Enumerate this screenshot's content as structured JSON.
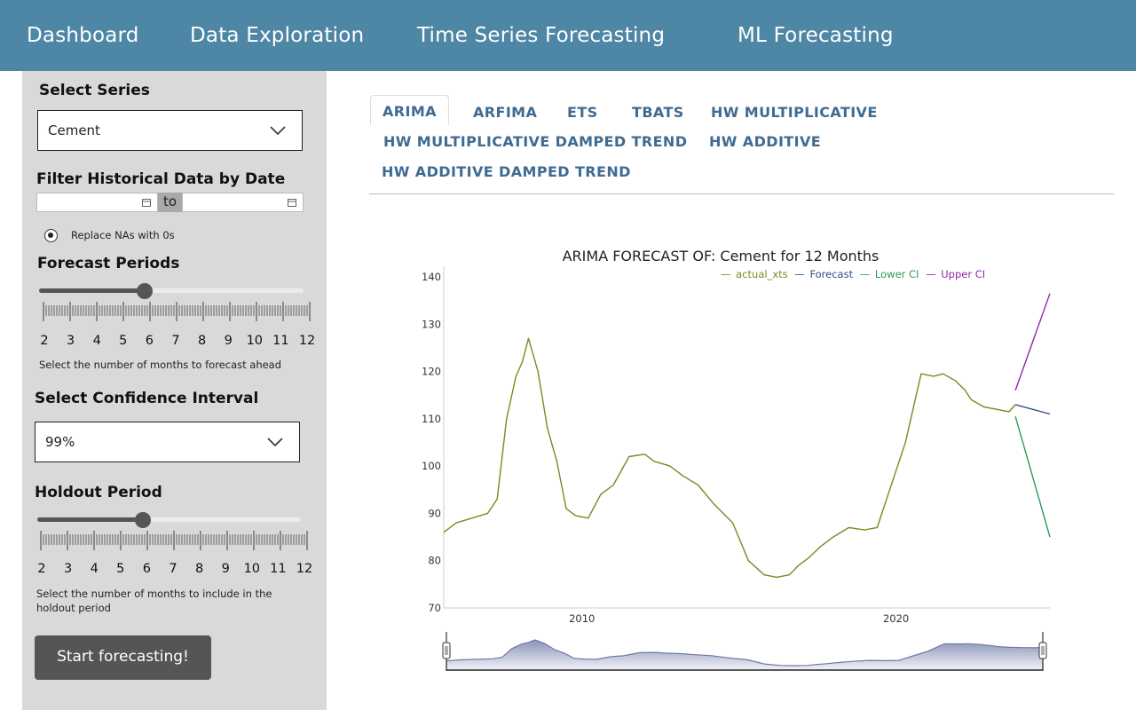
{
  "nav": {
    "items": [
      "Dashboard",
      "Data Exploration",
      "Time Series Forecasting",
      "ML Forecasting"
    ]
  },
  "sidebar": {
    "series_label": "Select Series",
    "series_value": "Cement",
    "filter_label": "Filter Historical Data by Date",
    "date_sep": "to",
    "start_date": "",
    "end_date": "",
    "replace_na_label": "Replace NAs with 0s",
    "forecast_label": "Forecast Periods",
    "forecast_value": 6,
    "forecast_help": "Select the number of months to forecast ahead",
    "slider_ticks": [
      "2",
      "3",
      "4",
      "5",
      "6",
      "7",
      "8",
      "9",
      "10",
      "11",
      "12"
    ],
    "ci_label": "Select Confidence Interval",
    "ci_value": "99%",
    "holdout_label": "Holdout Period",
    "holdout_value": 6,
    "holdout_help_1": "Select the number of months to include in the",
    "holdout_help_2": "holdout period",
    "start_button": "Start forecasting!"
  },
  "tabs": [
    "ARIMA",
    "ARFIMA",
    "ETS",
    "TBATS",
    "HW MULTIPLICATIVE",
    "HW MULTIPLICATIVE DAMPED TREND",
    "HW ADDITIVE",
    "HW ADDITIVE DAMPED TREND"
  ],
  "active_tab": "ARIMA",
  "colors": {
    "nav_bg": "#4e86a5",
    "tab_text": "#3f6b93",
    "actual": "#7a8b1e",
    "forecast": "#2e4f8a",
    "lower": "#2e9a5a",
    "upper": "#8e2aa8"
  },
  "chart_data": {
    "type": "line",
    "title": "ARIMA FORECAST OF: Cement for 12 Months",
    "legend": [
      "actual_xts",
      "Forecast",
      "Lower CI",
      "Upper CI"
    ],
    "legend_position": "top-right",
    "xlabel": "",
    "ylabel": "",
    "ylim": [
      70,
      140
    ],
    "yticks": [
      70,
      80,
      90,
      100,
      110,
      120,
      130,
      140
    ],
    "xlim": [
      2005.6,
      2024.9
    ],
    "xticks": [
      2010,
      2020
    ],
    "grid": false,
    "series": [
      {
        "name": "actual_xts",
        "x": [
          2005.6,
          2006.0,
          2006.5,
          2007.0,
          2007.3,
          2007.6,
          2007.9,
          2008.1,
          2008.3,
          2008.6,
          2008.9,
          2009.2,
          2009.5,
          2009.8,
          2010.2,
          2010.6,
          2011.0,
          2011.5,
          2012.0,
          2012.3,
          2012.8,
          2013.2,
          2013.7,
          2014.2,
          2014.8,
          2015.3,
          2015.8,
          2016.2,
          2016.6,
          2016.9,
          2017.2,
          2017.6,
          2018.0,
          2018.5,
          2019.0,
          2019.4,
          2019.8,
          2020.3,
          2020.8,
          2021.2,
          2021.5,
          2021.9,
          2022.2,
          2022.4,
          2022.8,
          2023.2,
          2023.6,
          2023.8
        ],
        "y": [
          86,
          88,
          89,
          90,
          93,
          110,
          119,
          122,
          127,
          120,
          108,
          101,
          91,
          89.5,
          89,
          94,
          96,
          102,
          102.5,
          101,
          100,
          98,
          96,
          92,
          88,
          80,
          77,
          76.5,
          77,
          79,
          80.5,
          83,
          85,
          87,
          86.5,
          87,
          95,
          105,
          119.5,
          119,
          119.5,
          118,
          116,
          114,
          112.5,
          112,
          111.5,
          113
        ],
        "color": "#7a8b1e"
      },
      {
        "name": "Forecast",
        "x": [
          2023.8,
          2024.9
        ],
        "y": [
          113,
          111
        ],
        "color": "#2e4f8a"
      },
      {
        "name": "Lower CI",
        "x": [
          2023.8,
          2024.9
        ],
        "y": [
          110.5,
          85
        ],
        "color": "#2e9a5a"
      },
      {
        "name": "Upper CI",
        "x": [
          2023.8,
          2024.9
        ],
        "y": [
          116,
          136.5
        ],
        "color": "#8e2aa8"
      }
    ]
  }
}
